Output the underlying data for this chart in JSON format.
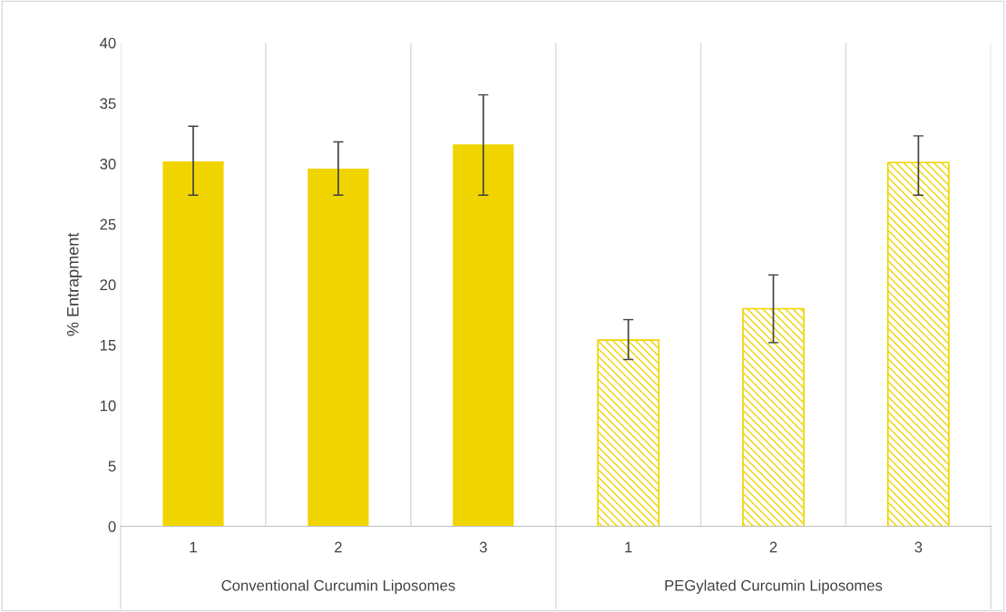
{
  "chart_data": {
    "type": "bar",
    "ylabel": "% Entrapment",
    "categories": [
      "1",
      "2",
      "3",
      "1",
      "2",
      "3"
    ],
    "annotations": [
      "Conventional Curcumin Liposomes",
      "PEGylated Curcumin Liposomes"
    ],
    "series": [
      {
        "color": "#f0d400",
        "values": [
          30.2,
          29.6,
          31.6,
          null,
          null,
          null
        ],
        "errors": [
          [
            27.4,
            33.1
          ],
          [
            27.4,
            31.8
          ],
          [
            27.4,
            35.7
          ],
          null,
          null,
          null
        ]
      },
      {
        "color": "#f0d400",
        "values": [
          null,
          null,
          null,
          15.4,
          18.0,
          30.1
        ],
        "errors": [
          null,
          null,
          null,
          [
            13.8,
            17.1
          ],
          [
            15.2,
            20.8
          ],
          [
            27.4,
            32.3
          ]
        ]
      }
    ],
    "ylim": [
      0,
      40
    ],
    "yticks": [
      0,
      5,
      10,
      15,
      20,
      25,
      30,
      35,
      40
    ],
    "grid": "x"
  }
}
